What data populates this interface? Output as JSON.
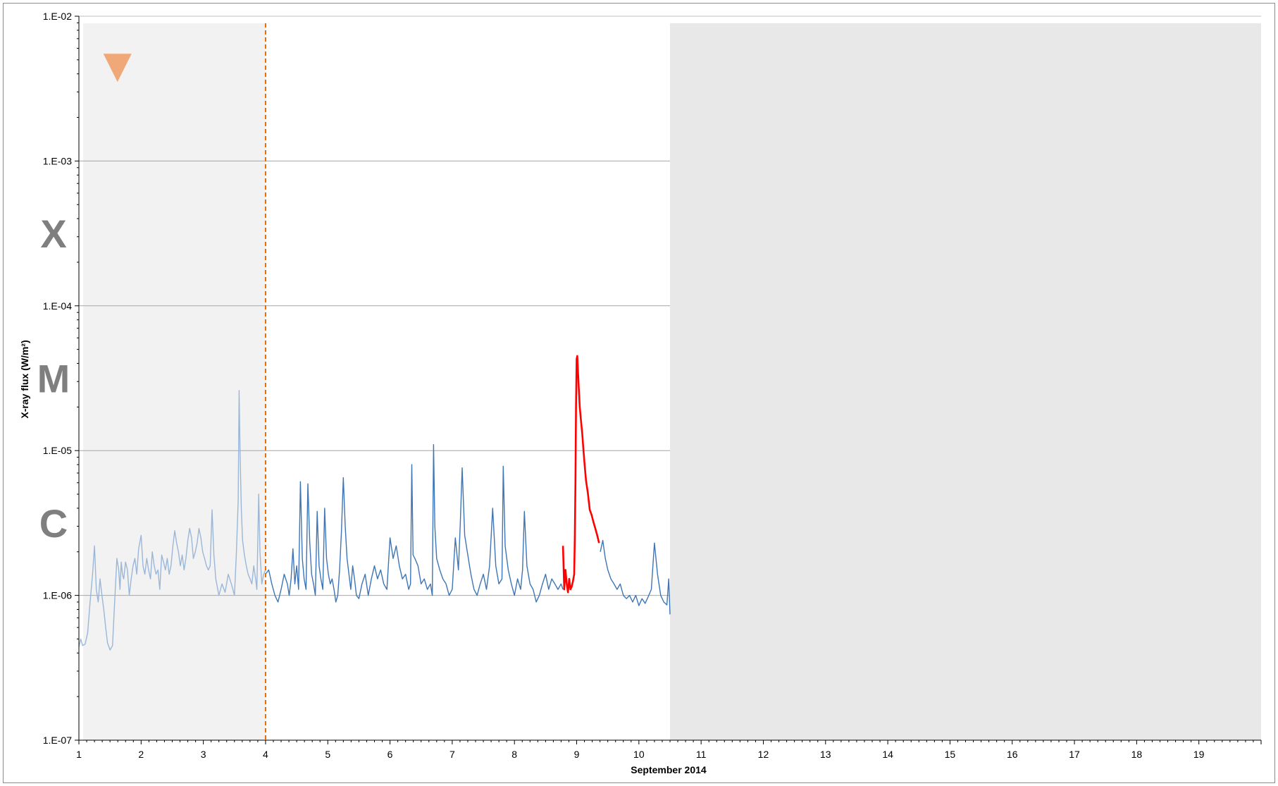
{
  "chart_data": {
    "type": "line",
    "title": "",
    "xlabel": "September 2014",
    "ylabel": "X-ray flux (W/m²)",
    "xlim": [
      1,
      20
    ],
    "ylim": [
      1e-07,
      0.01
    ],
    "yscale": "log",
    "grid": "horizontal major",
    "x_ticks": [
      "1",
      "2",
      "3",
      "4",
      "5",
      "6",
      "7",
      "8",
      "9",
      "10",
      "11",
      "12",
      "13",
      "14",
      "15",
      "16",
      "17",
      "18",
      "19"
    ],
    "y_ticks": [
      "1.E-07",
      "1.E-06",
      "1.E-05",
      "1.E-04",
      "1.E-03",
      "1.E-02"
    ],
    "flare_classes": [
      {
        "label": "X",
        "y": 0.000316
      },
      {
        "label": "M",
        "y": 3.16e-05
      },
      {
        "label": "C",
        "y": 3.16e-06
      }
    ],
    "shaded_regions": [
      {
        "x": [
          1.07,
          4.0
        ],
        "color": "#f2f2f2"
      },
      {
        "x": [
          10.5,
          20.0
        ],
        "color": "#e8e8e8"
      }
    ],
    "vertical_line": {
      "x": 4.0,
      "color": "#e36c09",
      "style": "dashed"
    },
    "marker": {
      "shape": "downward-triangle",
      "x": 1.62,
      "y": 0.0044,
      "color": "#f0a878"
    },
    "colors": {
      "past": "#9bb7d8",
      "present": "#3e75b5",
      "flare": "#ff0000"
    },
    "series": [
      {
        "color": "#9bb7d8",
        "x": [
          1.0,
          1.03,
          1.06,
          1.1,
          1.14,
          1.18,
          1.22,
          1.25,
          1.28,
          1.31,
          1.34,
          1.37,
          1.4,
          1.43,
          1.46,
          1.5,
          1.54,
          1.58,
          1.61,
          1.64,
          1.66,
          1.68,
          1.7,
          1.72,
          1.75,
          1.78,
          1.81,
          1.84,
          1.87,
          1.9,
          1.93,
          1.96,
          2.0,
          2.03,
          2.06,
          2.09,
          2.12,
          2.15,
          2.18,
          2.21,
          2.24,
          2.27,
          2.3,
          2.33,
          2.36,
          2.39,
          2.42,
          2.45,
          2.48,
          2.51,
          2.54,
          2.57,
          2.6,
          2.63,
          2.66,
          2.69,
          2.72,
          2.75,
          2.78,
          2.81,
          2.84,
          2.87,
          2.9,
          2.93,
          2.96,
          2.99,
          3.02,
          3.05,
          3.08,
          3.11,
          3.14,
          3.17,
          3.2,
          3.25,
          3.3,
          3.35,
          3.4,
          3.45,
          3.5,
          3.53,
          3.56,
          3.575,
          3.59,
          3.61,
          3.63,
          3.66,
          3.69,
          3.72,
          3.75,
          3.78,
          3.81,
          3.84,
          3.86,
          3.89,
          3.91,
          3.94,
          3.97,
          4.0
        ],
        "y": [
          4.4e-07,
          5e-07,
          4.5e-07,
          4.6e-07,
          5.5e-07,
          9e-07,
          1.4e-06,
          2.2e-06,
          1.1e-06,
          9e-07,
          1.3e-06,
          1e-06,
          8e-07,
          6e-07,
          4.7e-07,
          4.2e-07,
          4.5e-07,
          1e-06,
          1.8e-06,
          1.5e-06,
          1.1e-06,
          1.7e-06,
          1.4e-06,
          1.3e-06,
          1.7e-06,
          1.5e-06,
          1e-06,
          1.3e-06,
          1.6e-06,
          1.8e-06,
          1.4e-06,
          2.1e-06,
          2.6e-06,
          1.6e-06,
          1.4e-06,
          1.8e-06,
          1.5e-06,
          1.3e-06,
          2e-06,
          1.6e-06,
          1.4e-06,
          1.5e-06,
          1.1e-06,
          1.9e-06,
          1.7e-06,
          1.5e-06,
          1.8e-06,
          1.4e-06,
          1.6e-06,
          2.2e-06,
          2.8e-06,
          2.3e-06,
          2e-06,
          1.6e-06,
          1.9e-06,
          1.5e-06,
          1.8e-06,
          2.4e-06,
          2.9e-06,
          2.5e-06,
          1.8e-06,
          2e-06,
          2.3e-06,
          2.9e-06,
          2.5e-06,
          2e-06,
          1.8e-06,
          1.6e-06,
          1.5e-06,
          1.6e-06,
          3.9e-06,
          1.9e-06,
          1.3e-06,
          1e-06,
          1.2e-06,
          1.05e-06,
          1.4e-06,
          1.2e-06,
          1e-06,
          1.9e-06,
          4.5e-06,
          2.6e-05,
          1e-05,
          4e-06,
          2.4e-06,
          1.9e-06,
          1.6e-06,
          1.4e-06,
          1.3e-06,
          1.2e-06,
          1.6e-06,
          1.3e-06,
          1.1e-06,
          5e-06,
          2e-06,
          1.2e-06,
          1.4e-06,
          1.5e-06
        ]
      },
      {
        "color": "#3e75b5",
        "x": [
          4.0,
          4.05,
          4.1,
          4.15,
          4.2,
          4.25,
          4.3,
          4.35,
          4.38,
          4.41,
          4.44,
          4.47,
          4.5,
          4.53,
          4.56,
          4.59,
          4.62,
          4.65,
          4.68,
          4.71,
          4.74,
          4.77,
          4.8,
          4.83,
          4.86,
          4.89,
          4.92,
          4.95,
          4.98,
          5.01,
          5.04,
          5.07,
          5.1,
          5.13,
          5.16,
          5.19,
          5.22,
          5.25,
          5.28,
          5.31,
          5.34,
          5.37,
          5.4,
          5.43,
          5.46,
          5.5,
          5.55,
          5.6,
          5.65,
          5.7,
          5.75,
          5.8,
          5.85,
          5.9,
          5.95,
          6.0,
          6.05,
          6.1,
          6.15,
          6.2,
          6.25,
          6.3,
          6.33,
          6.35,
          6.37,
          6.4,
          6.45,
          6.5,
          6.55,
          6.6,
          6.65,
          6.68,
          6.7,
          6.72,
          6.75,
          6.8,
          6.85,
          6.9,
          6.95,
          7.0,
          7.05,
          7.1,
          7.13,
          7.16,
          7.2,
          7.25,
          7.3,
          7.35,
          7.4,
          7.45,
          7.5,
          7.55,
          7.6,
          7.65,
          7.7,
          7.75,
          7.8,
          7.82,
          7.85,
          7.9,
          7.95,
          8.0,
          8.05,
          8.1,
          8.13,
          8.16,
          8.2,
          8.25,
          8.3,
          8.35,
          8.4,
          8.45,
          8.5,
          8.55,
          8.6,
          8.65,
          8.7,
          8.75,
          8.78
        ],
        "y": [
          1.4e-06,
          1.5e-06,
          1.2e-06,
          1e-06,
          9e-07,
          1.1e-06,
          1.4e-06,
          1.2e-06,
          1e-06,
          1.3e-06,
          2.1e-06,
          1.2e-06,
          1.6e-06,
          1.1e-06,
          6.1e-06,
          1.8e-06,
          1.3e-06,
          1.1e-06,
          5.9e-06,
          2.3e-06,
          1.4e-06,
          1.2e-06,
          1e-06,
          3.8e-06,
          1.6e-06,
          1.3e-06,
          1.1e-06,
          4e-06,
          1.8e-06,
          1.4e-06,
          1.2e-06,
          1.3e-06,
          1.1e-06,
          9e-07,
          1e-06,
          1.5e-06,
          2.8e-06,
          6.5e-06,
          3e-06,
          1.8e-06,
          1.4e-06,
          1.1e-06,
          1.6e-06,
          1.3e-06,
          1e-06,
          9.5e-07,
          1.2e-06,
          1.4e-06,
          1e-06,
          1.3e-06,
          1.6e-06,
          1.3e-06,
          1.5e-06,
          1.2e-06,
          1.1e-06,
          2.5e-06,
          1.8e-06,
          2.2e-06,
          1.6e-06,
          1.3e-06,
          1.4e-06,
          1.1e-06,
          1.2e-06,
          8e-06,
          1.9e-06,
          1.8e-06,
          1.6e-06,
          1.2e-06,
          1.3e-06,
          1.1e-06,
          1.2e-06,
          1e-06,
          1.1e-05,
          3e-06,
          1.8e-06,
          1.5e-06,
          1.3e-06,
          1.2e-06,
          1e-06,
          1.1e-06,
          2.5e-06,
          1.5e-06,
          3.2e-06,
          7.6e-06,
          2.6e-06,
          1.9e-06,
          1.4e-06,
          1.1e-06,
          1e-06,
          1.2e-06,
          1.4e-06,
          1.1e-06,
          1.6e-06,
          4e-06,
          1.6e-06,
          1.2e-06,
          1.3e-06,
          7.8e-06,
          2.2e-06,
          1.5e-06,
          1.2e-06,
          1e-06,
          1.3e-06,
          1.1e-06,
          1.5e-06,
          3.8e-06,
          1.6e-06,
          1.2e-06,
          1.1e-06,
          9e-07,
          1e-06,
          1.2e-06,
          1.4e-06,
          1.1e-06,
          1.3e-06,
          1.2e-06,
          1.1e-06,
          1.2e-06,
          1.1e-06
        ]
      },
      {
        "color": "#3e75b5",
        "x": [
          9.38,
          9.42,
          9.46,
          9.5,
          9.55,
          9.6,
          9.65,
          9.7,
          9.75,
          9.8,
          9.85,
          9.9,
          9.95,
          10.0,
          10.05,
          10.1,
          10.15,
          10.2,
          10.25,
          10.3,
          10.35,
          10.4,
          10.45,
          10.48,
          10.5
        ],
        "y": [
          2e-06,
          2.4e-06,
          1.8e-06,
          1.5e-06,
          1.3e-06,
          1.2e-06,
          1.1e-06,
          1.2e-06,
          1e-06,
          9.5e-07,
          1e-06,
          9e-07,
          1e-06,
          8.5e-07,
          9.5e-07,
          8.8e-07,
          9.8e-07,
          1.1e-06,
          2.3e-06,
          1.4e-06,
          1e-06,
          9e-07,
          8.6e-07,
          1.3e-06,
          7.4e-07
        ]
      },
      {
        "color": "#ff0000",
        "x": [
          8.78,
          8.8,
          8.82,
          8.84,
          8.86,
          8.88,
          8.9,
          8.92,
          8.94,
          8.96,
          8.97,
          8.98,
          8.99,
          9.0,
          9.01,
          9.02,
          9.03,
          9.04,
          9.05,
          9.07,
          9.09,
          9.11,
          9.13,
          9.15,
          9.18,
          9.21,
          9.24,
          9.27,
          9.3,
          9.33,
          9.36
        ],
        "y": [
          2.2e-06,
          1.1e-06,
          1.5e-06,
          1.2e-06,
          1.05e-06,
          1.3e-06,
          1.1e-06,
          1.15e-06,
          1.25e-06,
          1.4e-06,
          2.5e-06,
          6e-06,
          2e-05,
          4.3e-05,
          4.5e-05,
          3.6e-05,
          2.9e-05,
          2.4e-05,
          2e-05,
          1.6e-05,
          1.3e-05,
          1e-05,
          7.8e-06,
          6.2e-06,
          5.1e-06,
          3.9e-06,
          3.6e-06,
          3.2e-06,
          2.9e-06,
          2.6e-06,
          2.3e-06
        ]
      }
    ]
  }
}
